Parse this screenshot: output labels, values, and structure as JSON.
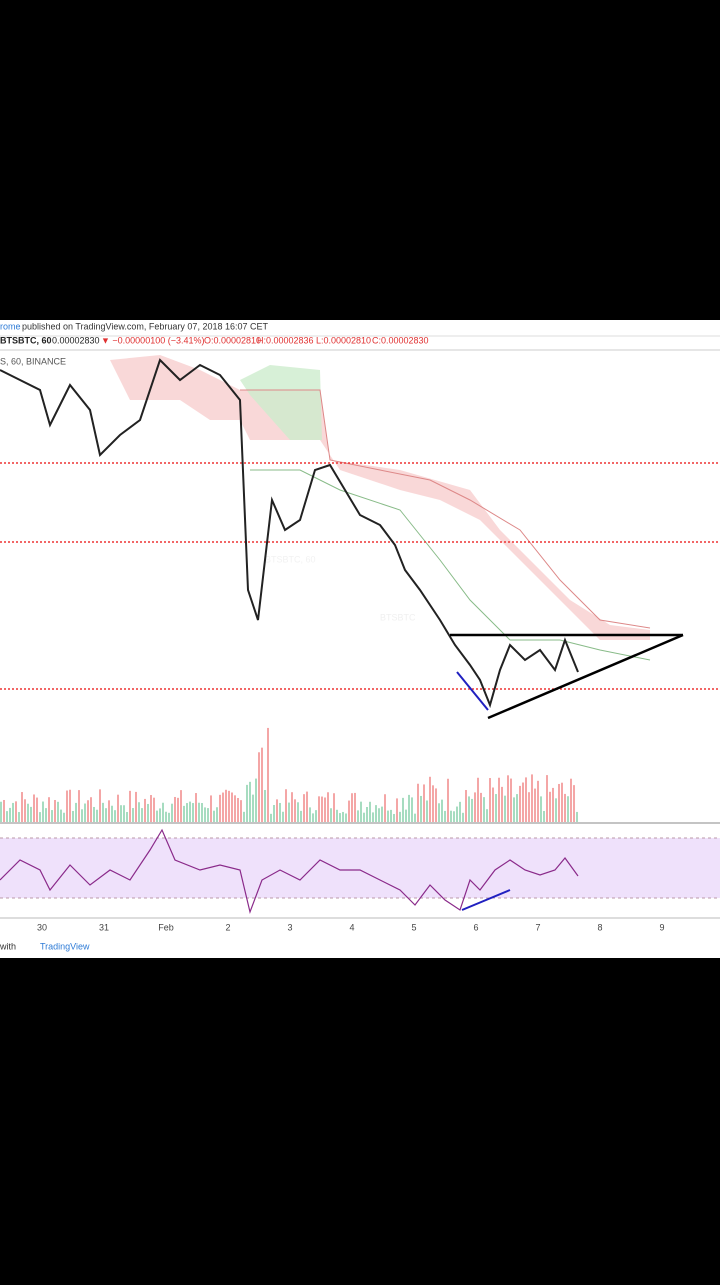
{
  "header": {
    "author": "rome",
    "published": "published on TradingView.com, February 07, 2018 16:07 CET"
  },
  "legend": {
    "symbol": "BTSBTC, 60",
    "price": "0.00002830",
    "change": "▼ −0.00000100 (−3.41%)",
    "open": "O:0.00002810",
    "high": "H:0.00002836",
    "low": "L:0.00002810",
    "close": "C:0.00002830"
  },
  "overlay": "S, 60, BINANCE",
  "watermark": {
    "symbol": "BTSBTC, 60",
    "pair": "BTSBTC"
  },
  "time_axis": [
    "30",
    "31",
    "Feb",
    "2",
    "3",
    "4",
    "5",
    "6",
    "7",
    "8",
    "9"
  ],
  "footer": {
    "prefix": "with",
    "brand": "TradingView"
  }
}
